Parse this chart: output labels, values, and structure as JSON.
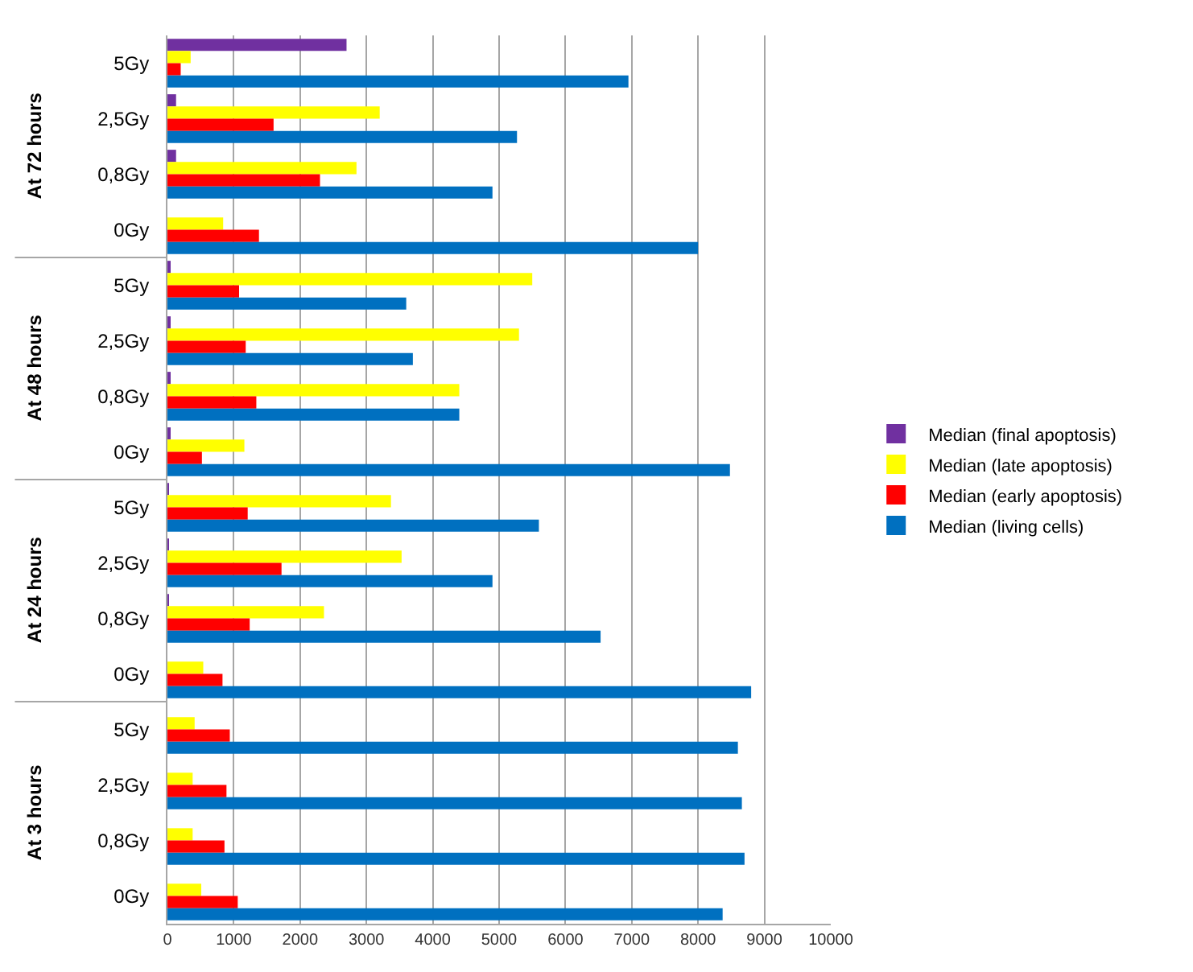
{
  "chart_data": {
    "type": "bar",
    "orientation": "horizontal",
    "categories": [
      "5Gy",
      "2,5Gy",
      "0,8Gy",
      "0Gy",
      "5Gy",
      "2,5Gy",
      "0,8Gy",
      "0Gy",
      "5Gy",
      "2,5Gy",
      "0,8Gy",
      "0Gy",
      "5Gy",
      "2,5Gy",
      "0,8Gy",
      "0Gy"
    ],
    "annotations": [
      "At 72 hours",
      "At 48 hours",
      "At 24 hours",
      "At 3 hours"
    ],
    "series": [
      {
        "name": "Median (final apoptosis)",
        "color": "#7030a0",
        "values": [
          2700,
          130,
          130,
          0,
          30,
          30,
          30,
          30,
          20,
          20,
          20,
          0,
          0,
          0,
          0,
          0
        ]
      },
      {
        "name": "Median (late apoptosis)",
        "color": "#ffff00",
        "values": [
          350,
          3200,
          2850,
          840,
          5500,
          5300,
          4400,
          1160,
          3370,
          3530,
          2360,
          540,
          410,
          380,
          380,
          510
        ]
      },
      {
        "name": "Median (early apoptosis)",
        "color": "#ff0000",
        "values": [
          200,
          1600,
          2300,
          1380,
          1080,
          1180,
          1340,
          520,
          1210,
          1720,
          1240,
          830,
          940,
          890,
          860,
          1060
        ]
      },
      {
        "name": "Median (living cells)",
        "color": "#0070c0",
        "values": [
          6950,
          5270,
          4900,
          8000,
          3600,
          3700,
          4400,
          8480,
          5600,
          4900,
          6530,
          8800,
          8600,
          8660,
          8700,
          8370
        ]
      }
    ],
    "xlim": [
      0,
      10000
    ],
    "xticks": [
      0,
      1000,
      2000,
      3000,
      4000,
      5000,
      6000,
      7000,
      8000,
      9000,
      10000
    ],
    "grid": "x",
    "legend": "right"
  }
}
